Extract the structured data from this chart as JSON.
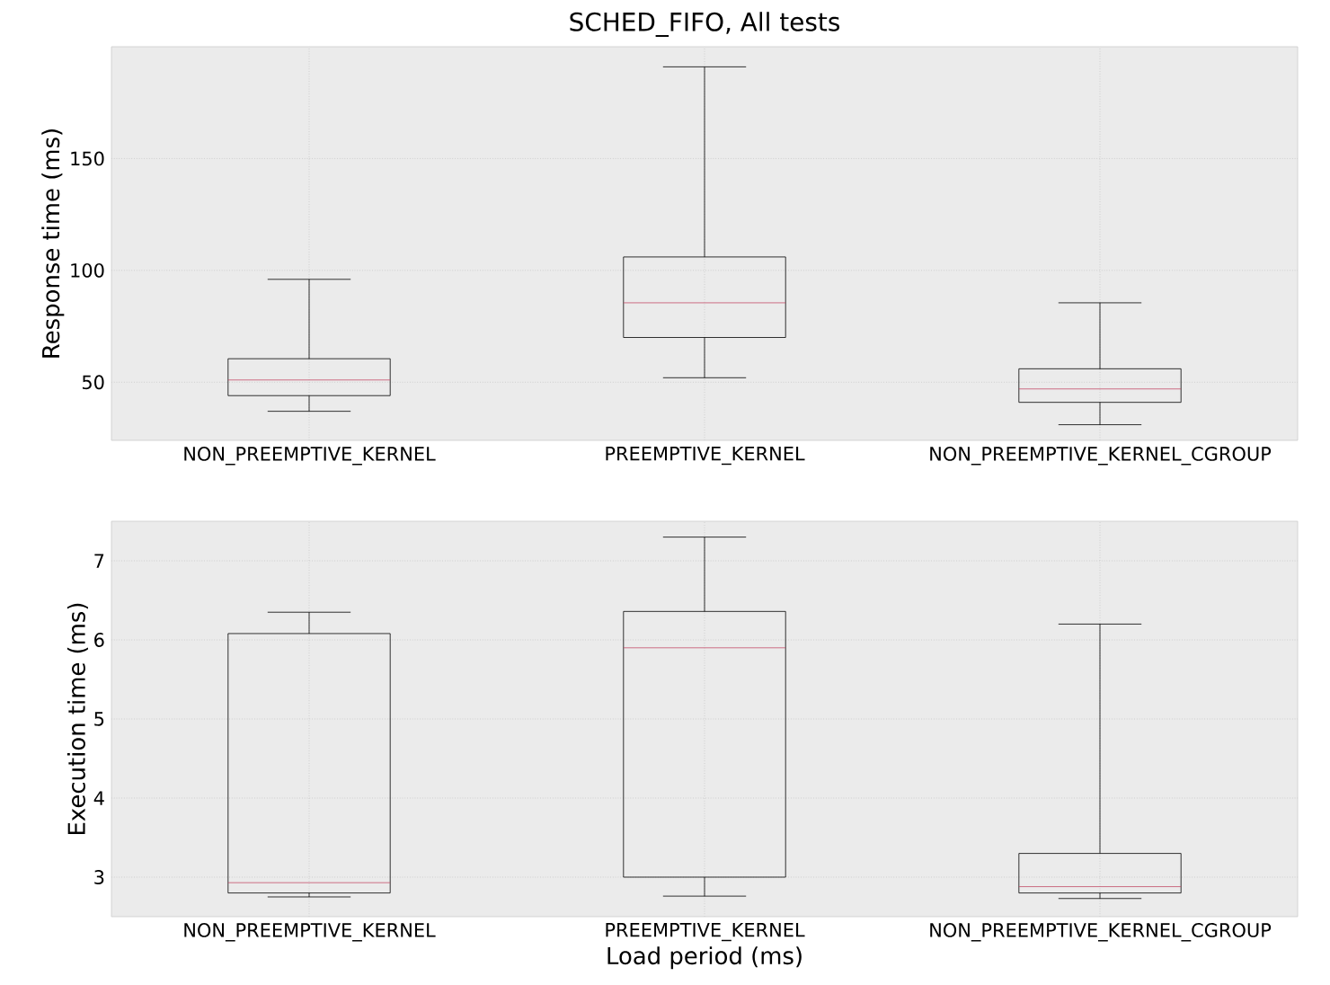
{
  "chart_data": [
    {
      "type": "box",
      "title": "SCHED_FIFO, All tests",
      "ylabel": "Response time (ms)",
      "categories": [
        "NON_PREEMPTIVE_KERNEL",
        "PREEMPTIVE_KERNEL",
        "NON_PREEMPTIVE_KERNEL_CGROUP"
      ],
      "ylim": [
        24,
        200
      ],
      "yticks": [
        50,
        100,
        150
      ],
      "grid": true,
      "boxes": [
        {
          "low": 37,
          "q1": 44,
          "median": 51,
          "q3": 60.5,
          "high": 96
        },
        {
          "low": 52,
          "q1": 70,
          "median": 85.5,
          "q3": 106,
          "high": 191
        },
        {
          "low": 31,
          "q1": 41,
          "median": 47,
          "q3": 56,
          "high": 85.5
        }
      ]
    },
    {
      "type": "box",
      "xlabel": "Load period (ms)",
      "ylabel": "Execution time (ms)",
      "categories": [
        "NON_PREEMPTIVE_KERNEL",
        "PREEMPTIVE_KERNEL",
        "NON_PREEMPTIVE_KERNEL_CGROUP"
      ],
      "ylim": [
        2.5,
        7.5
      ],
      "yticks": [
        3,
        4,
        5,
        6,
        7
      ],
      "grid": true,
      "boxes": [
        {
          "low": 2.75,
          "q1": 2.8,
          "median": 2.93,
          "q3": 6.08,
          "high": 6.35
        },
        {
          "low": 2.76,
          "q1": 3.0,
          "median": 5.9,
          "q3": 6.36,
          "high": 7.3
        },
        {
          "low": 2.73,
          "q1": 2.8,
          "median": 2.88,
          "q3": 3.3,
          "high": 6.2
        }
      ]
    }
  ]
}
